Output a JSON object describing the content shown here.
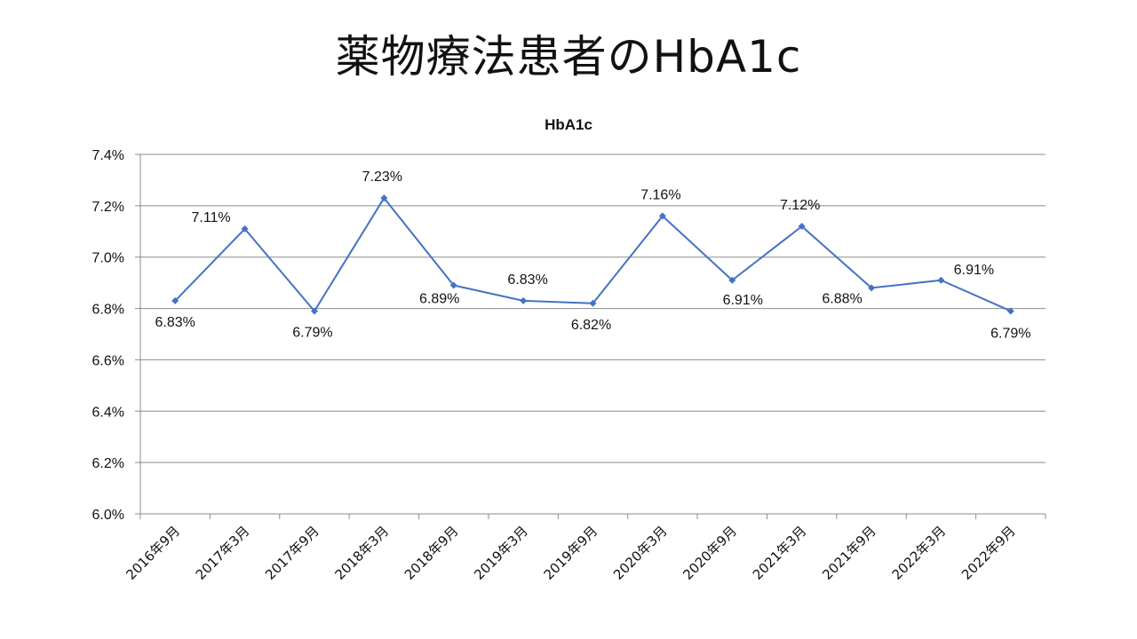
{
  "slide": {
    "title": "薬物療法患者のHbA1c"
  },
  "chart_data": {
    "type": "line",
    "title": "HbA1c",
    "xlabel": "",
    "ylabel": "",
    "categories": [
      "2016年9月",
      "2017年3月",
      "2017年9月",
      "2018年3月",
      "2018年9月",
      "2019年3月",
      "2019年9月",
      "2020年3月",
      "2020年9月",
      "2021年3月",
      "2021年9月",
      "2022年3月",
      "2022年9月"
    ],
    "series": [
      {
        "values": [
          6.83,
          7.11,
          6.79,
          7.23,
          6.89,
          6.83,
          6.82,
          7.16,
          6.91,
          7.12,
          6.88,
          6.91,
          6.79
        ],
        "data_labels": [
          "6.83%",
          "7.11%",
          "6.79%",
          "7.23%",
          "6.89%",
          "6.83%",
          "6.82%",
          "7.16%",
          "6.91%",
          "7.12%",
          "6.88%",
          "6.91%",
          "6.79%"
        ],
        "color": "#4472C4",
        "marker": "diamond"
      }
    ],
    "ylim": [
      6.0,
      7.4
    ],
    "yticks": [
      6.0,
      6.2,
      6.4,
      6.6,
      6.8,
      7.0,
      7.2,
      7.4
    ],
    "ytick_labels": [
      "6.0%",
      "6.2%",
      "6.4%",
      "6.6%",
      "6.8%",
      "7.0%",
      "7.2%",
      "7.4%"
    ],
    "grid": true,
    "legend": "none"
  }
}
